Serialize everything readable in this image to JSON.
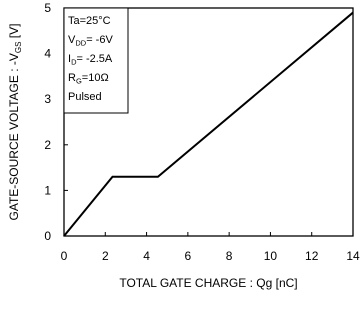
{
  "chart_data": {
    "type": "line",
    "x": [
      0,
      2.35,
      4.55,
      14
    ],
    "series": [
      {
        "values": [
          0,
          1.3,
          1.3,
          4.9
        ]
      }
    ],
    "xlim": [
      0,
      14
    ],
    "ylim": [
      0,
      5
    ],
    "x_ticks": [
      "0",
      "2",
      "4",
      "6",
      "8",
      "10",
      "12",
      "14"
    ],
    "y_ticks": [
      "0",
      "1",
      "2",
      "3",
      "4",
      "5"
    ],
    "xlabel": "TOTAL GATE CHARGE : Qg  [nC]",
    "ylabel": "GATE-SOURCE VOLTAGE : -V",
    "ylabel_sub": "GS",
    "ylabel_unit": " [V]",
    "grid": false,
    "line_color": "#000000",
    "conditions": [
      {
        "main": "Ta=25°C",
        "sub": "",
        "rest": ""
      },
      {
        "main": "V",
        "sub": "DD",
        "rest": "= -6V"
      },
      {
        "main": "I",
        "sub": "D",
        "rest": "= -2.5A"
      },
      {
        "main": "R",
        "sub": "G",
        "rest": "=10Ω"
      },
      {
        "main": "Pulsed",
        "sub": "",
        "rest": ""
      }
    ]
  }
}
